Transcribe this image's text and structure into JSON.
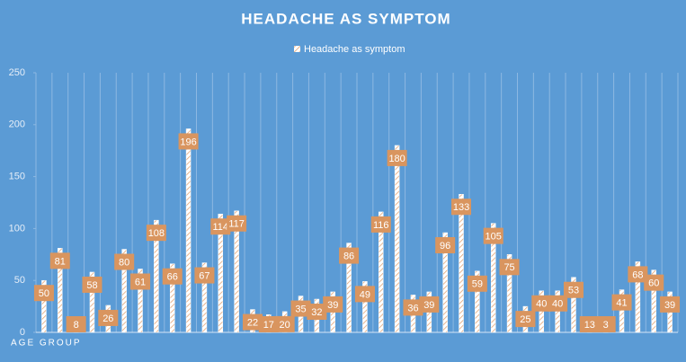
{
  "chart_data": {
    "type": "bar",
    "title": "HEADACHE AS SYMPTOM",
    "x_label": "AGE GROUP",
    "categories": [
      null,
      null,
      null,
      null,
      null,
      null,
      null,
      null,
      null,
      null,
      null,
      null,
      null,
      null,
      null,
      null,
      null,
      null,
      null,
      null,
      null,
      null,
      null,
      null,
      null,
      null,
      null,
      null,
      null,
      null,
      null,
      null,
      null,
      null,
      null,
      null,
      null,
      null,
      null,
      null
    ],
    "series": [
      {
        "name": "Headache as symptom",
        "color": "#ffffff",
        "label_color": "#d9955f",
        "values": [
          50,
          81,
          8,
          58,
          26,
          80,
          61,
          108,
          66,
          196,
          67,
          114,
          117,
          22,
          17,
          20,
          35,
          32,
          39,
          86,
          49,
          116,
          180,
          36,
          39,
          96,
          133,
          59,
          105,
          75,
          25,
          40,
          40,
          53,
          13,
          3,
          41,
          68,
          60,
          39
        ]
      }
    ],
    "ylim": [
      0,
      250
    ],
    "yticks": [
      0,
      50,
      100,
      150,
      200,
      250
    ]
  }
}
